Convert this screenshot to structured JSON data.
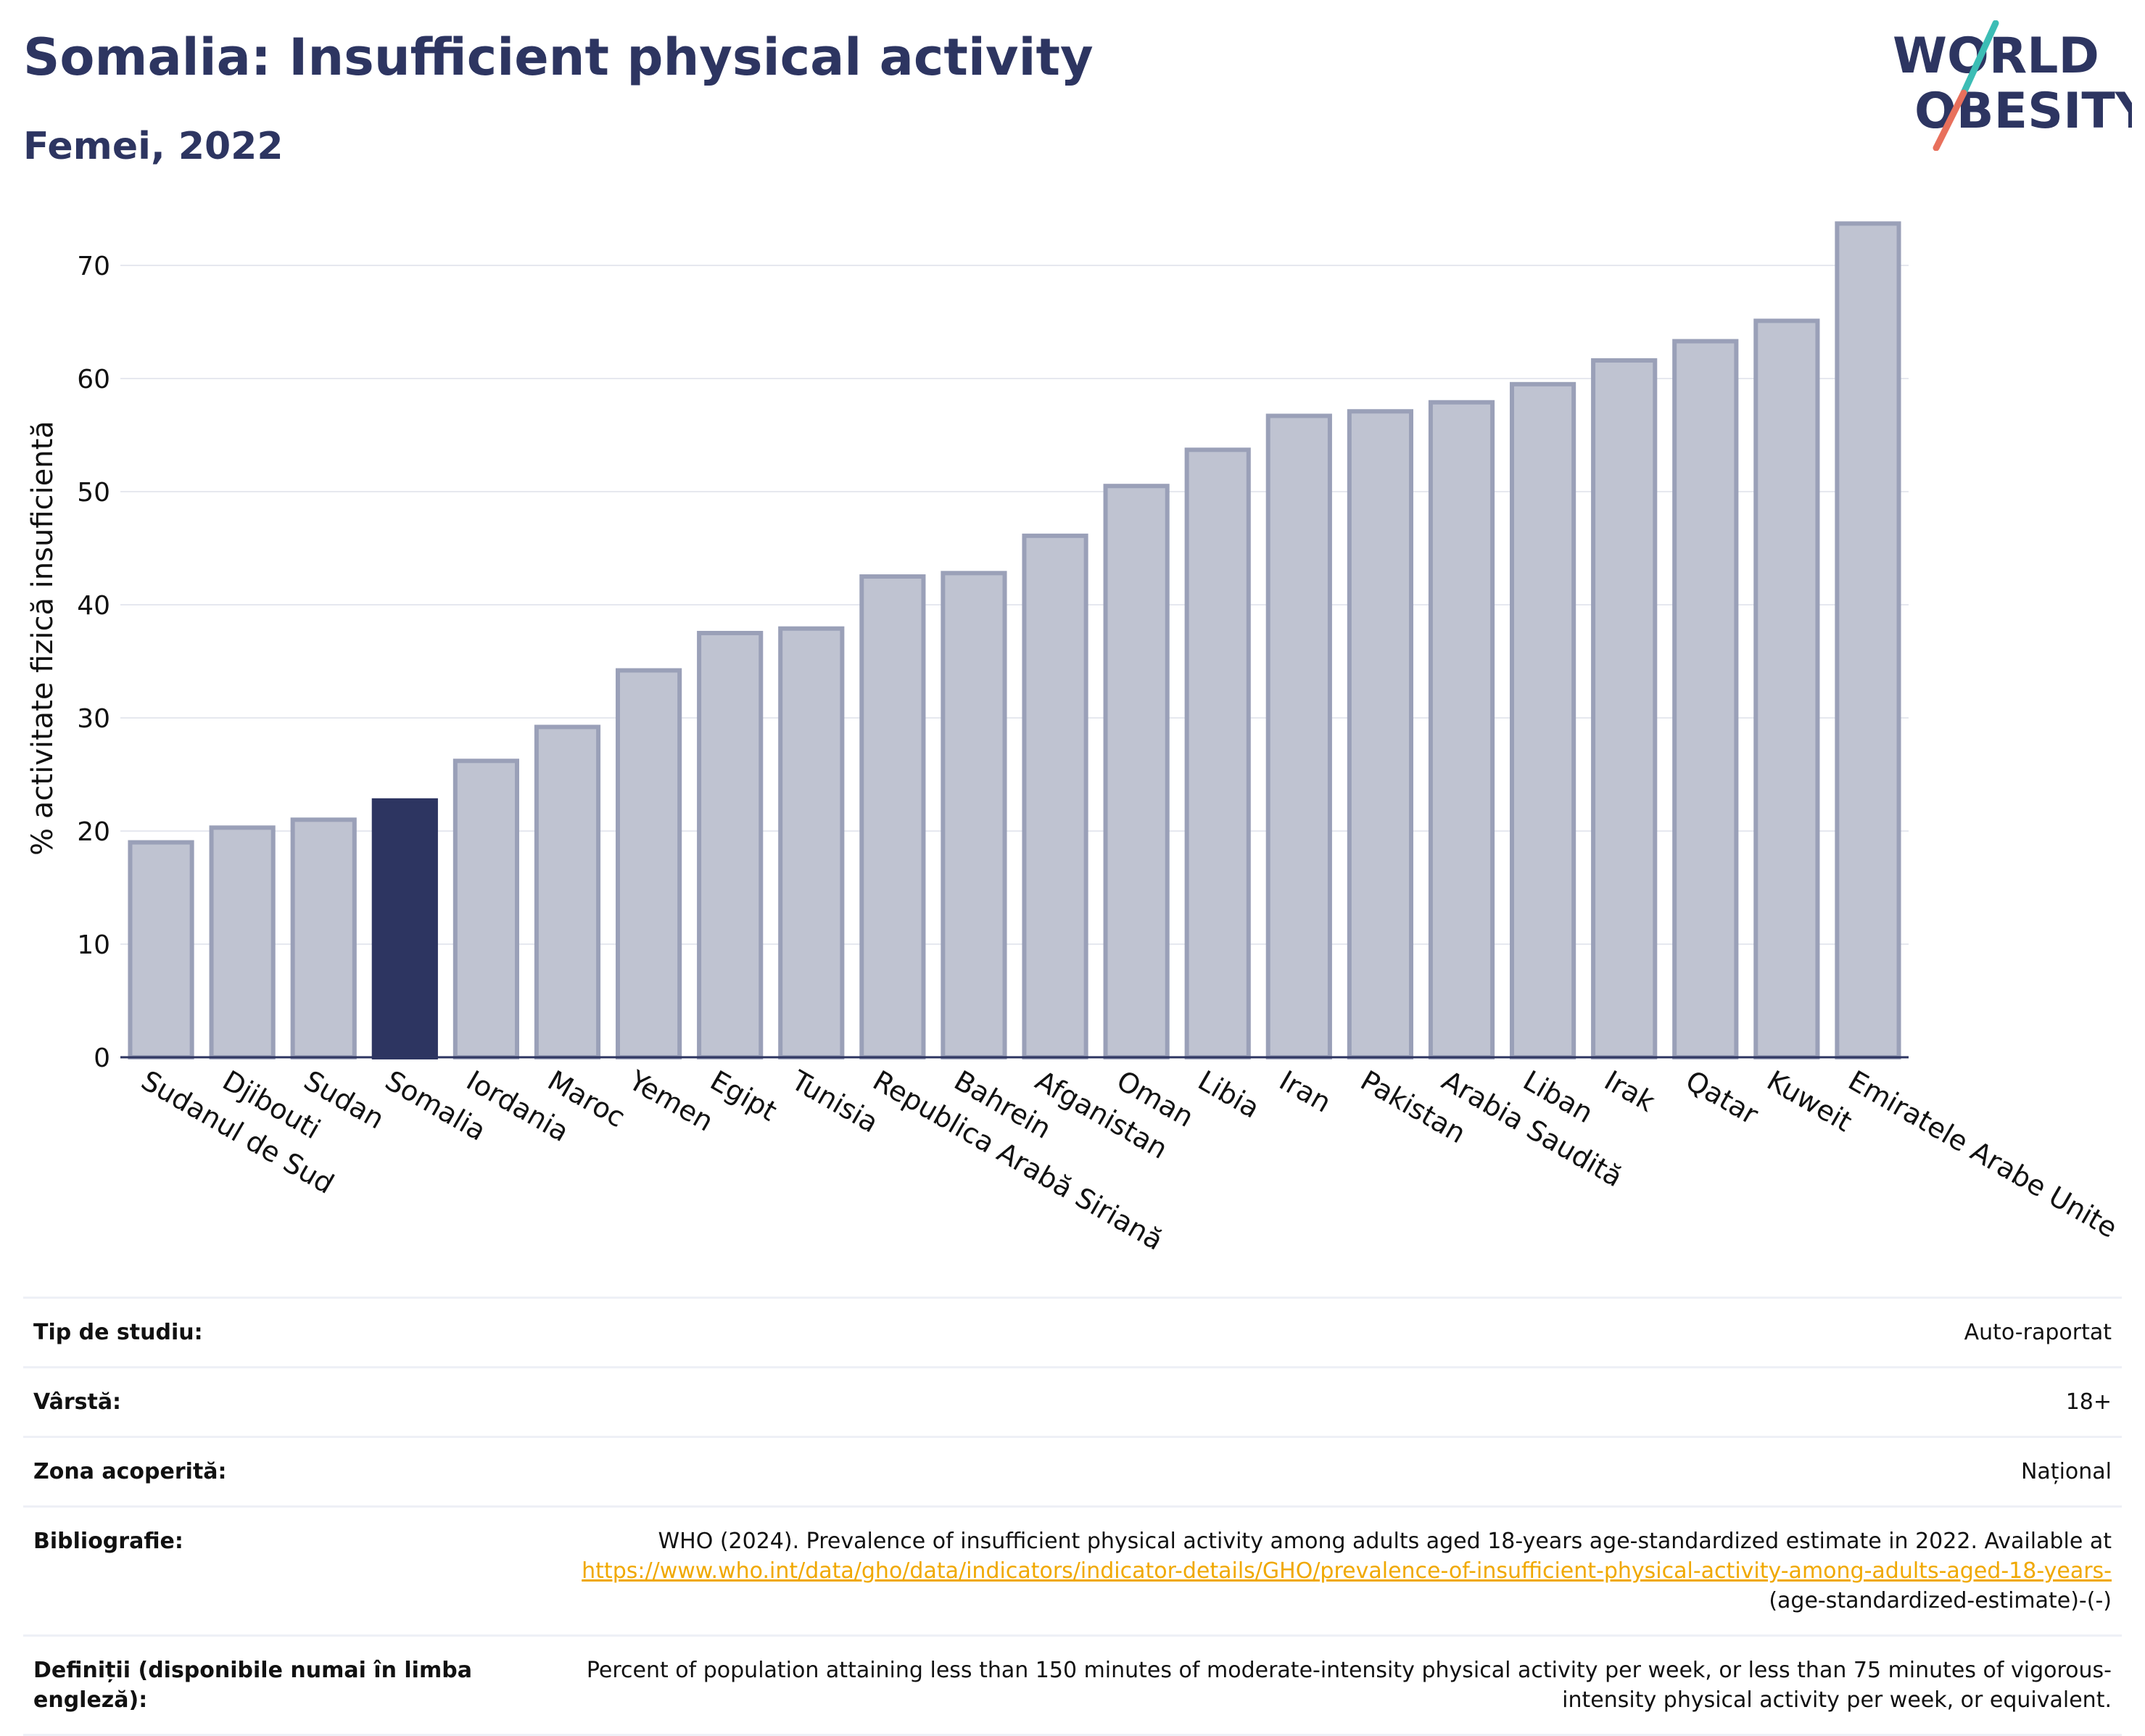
{
  "header": {
    "title": "Somalia: Insufficient physical activity",
    "subtitle": "Femei, 2022"
  },
  "logo": {
    "line1": "WORLD",
    "line2": "OBESITY"
  },
  "colors": {
    "bar": "#bfc3d1",
    "bar_stroke": "#9aa0b8",
    "highlight": "#2d3561",
    "grid": "#e6e8ef",
    "text": "#2d3561",
    "link": "#f0a800"
  },
  "chart_data": {
    "type": "bar",
    "title": "Somalia: Insufficient physical activity",
    "subtitle": "Femei, 2022",
    "xlabel": "",
    "ylabel": "% activitate fizică insuficientă",
    "ylim": [
      0,
      75
    ],
    "yticks": [
      0,
      10,
      20,
      30,
      40,
      50,
      60,
      70
    ],
    "grid": true,
    "highlight": "Somalia",
    "categories": [
      "Sudanul de Sud",
      "Djibouti",
      "Sudan",
      "Somalia",
      "Iordania",
      "Maroc",
      "Yemen",
      "Egipt",
      "Tunisia",
      "Republica Arabă Siriană",
      "Bahrein",
      "Afganistan",
      "Oman",
      "Libia",
      "Iran",
      "Pakistan",
      "Arabia Saudită",
      "Liban",
      "Irak",
      "Qatar",
      "Kuweit",
      "Emiratele Arabe Unite"
    ],
    "values": [
      19.0,
      20.3,
      21.0,
      22.7,
      26.2,
      29.2,
      34.2,
      37.5,
      37.9,
      42.5,
      42.8,
      46.1,
      50.5,
      53.7,
      56.7,
      57.1,
      57.9,
      59.5,
      61.6,
      63.3,
      65.1,
      73.7
    ]
  },
  "info": {
    "study_type_label": "Tip de studiu:",
    "study_type_value": "Auto-raportat",
    "age_label": "Vârstă:",
    "age_value": "18+",
    "coverage_label": "Zona acoperită:",
    "coverage_value": "Național",
    "bibliography_label": "Bibliografie:",
    "bibliography_text": "WHO (2024). Prevalence of insufficient physical activity among adults aged 18-years age-standardized estimate in 2022. Available at",
    "bibliography_link": "https://www.who.int/data/gho/data/indicators/indicator-details/GHO/prevalence-of-insufficient-physical-activity-among-adults-aged-18-years-",
    "bibliography_suffix": "(age-standardized-estimate)-(-)",
    "definitions_label": "Definiții (disponibile numai în limba engleză):",
    "definitions_value": "Percent of population attaining less than 150 minutes of moderate-intensity physical activity per week, or less than 75 minutes of vigorous-intensity physical activity per week, or equivalent."
  }
}
